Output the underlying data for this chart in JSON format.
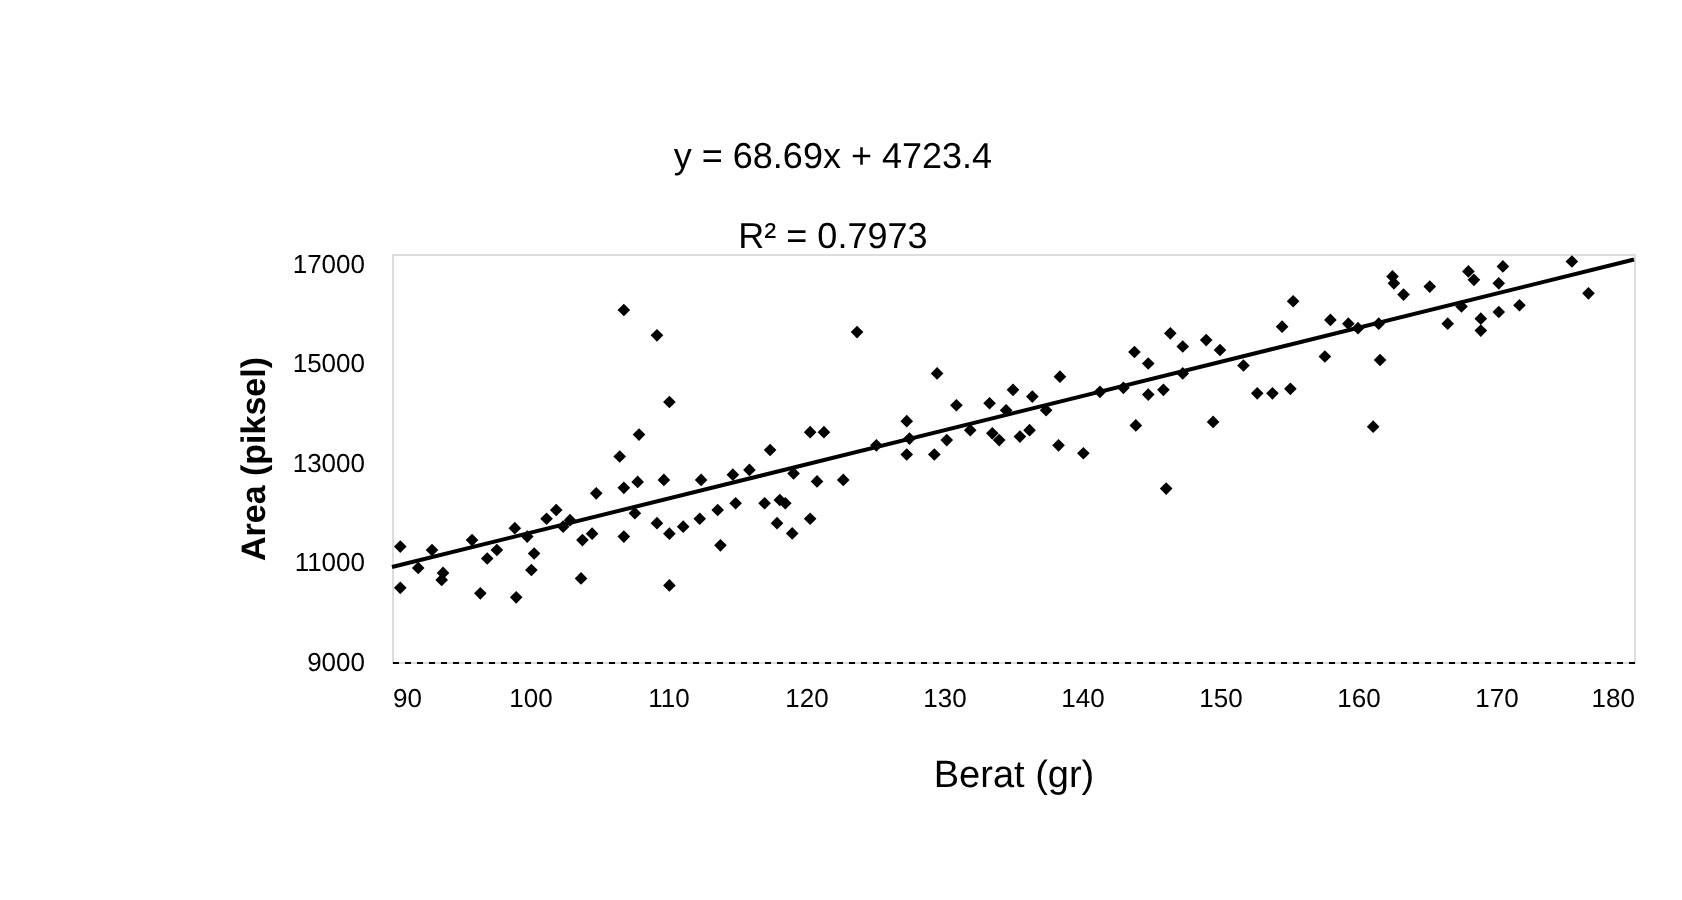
{
  "chart_data": {
    "type": "scatter",
    "xlabel": "Berat (gr)",
    "ylabel": "Area (piksel)",
    "annotations": [
      "y = 68.69x + 4723.4",
      "R² = 0.7973"
    ],
    "xlim": [
      90,
      180
    ],
    "xticks": [
      90,
      100,
      110,
      120,
      130,
      140,
      150,
      160,
      170,
      180
    ],
    "ylim": [
      9000,
      17200
    ],
    "yticks": [
      9000,
      11000,
      13000,
      15000,
      17000
    ],
    "grid": false,
    "marker": "diamond",
    "series": [
      {
        "color": "#000000",
        "x": [
          90.6,
          90.6,
          91.9,
          92.9,
          93.6,
          93.7,
          95.8,
          96.4,
          96.9,
          97.6,
          98.9,
          99,
          99.8,
          100.3,
          100.1,
          101.2,
          101.9,
          102.4,
          102.9,
          103.7,
          103.8,
          104.8,
          104.5,
          106.5,
          106.8,
          106.8,
          106.8,
          107.9,
          107.8,
          107.6,
          109.2,
          109.7,
          109.2,
          110.1,
          110.1,
          110.1,
          111.1,
          112.3,
          112.4,
          113.8,
          113.6,
          114.7,
          114.9,
          115.9,
          117.4,
          117.0,
          117.9,
          118.5,
          119.0,
          118.1,
          120.3,
          119.1,
          120.8,
          120.3,
          121.3,
          122.7,
          123.7,
          125.1,
          127.3,
          127.3,
          127.5,
          129.3,
          129.5,
          130.2,
          130.9,
          131.9,
          133.3,
          133.5,
          134.0,
          134.5,
          135.0,
          135.5,
          136.4,
          136.2,
          137.4,
          138.4,
          138.3,
          140.1,
          141.3,
          143.0,
          143.8,
          143.9,
          144.8,
          144.8,
          145.9,
          146.1,
          146.4,
          147.3,
          147.3,
          149.0,
          149.5,
          150.0,
          151.7,
          152.7,
          153.8,
          155.1,
          154.5,
          155.3,
          157.6,
          158.0,
          159.3,
          160.0,
          161.1,
          161.5,
          161.6,
          162.6,
          163.3,
          165.2,
          166.5,
          167.5,
          168.4,
          168.9,
          168.9,
          170.2,
          170.2,
          171.7,
          176.7,
          162.5,
          168.0,
          170.5,
          175.5
        ],
        "values": [
          11320,
          10490,
          10890,
          11250,
          10650,
          10790,
          11450,
          10380,
          11080,
          11250,
          11690,
          10300,
          11520,
          11180,
          10850,
          11880,
          12055,
          11720,
          11850,
          10680,
          11450,
          12390,
          11580,
          13130,
          16075,
          12500,
          11520,
          13570,
          12620,
          11990,
          15565,
          12660,
          11790,
          14225,
          10540,
          11580,
          11720,
          11880,
          12660,
          11345,
          12055,
          12765,
          12190,
          12860,
          13260,
          12190,
          11790,
          12190,
          11585,
          12255,
          11880,
          12790,
          12630,
          13620,
          13620,
          12660,
          15630,
          13355,
          13170,
          13840,
          13490,
          13170,
          14800,
          13460,
          14160,
          13660,
          14200,
          13595,
          13460,
          14060,
          14470,
          13530,
          14335,
          13660,
          14060,
          14735,
          13355,
          13195,
          14430,
          14510,
          15230,
          13755,
          15000,
          14375,
          14470,
          12485,
          15605,
          15340,
          14800,
          15470,
          13825,
          15270,
          14960,
          14400,
          14400,
          14490,
          15740,
          16250,
          15140,
          15875,
          15800,
          15710,
          13730,
          15800,
          15070,
          16610,
          16385,
          16545,
          15800,
          16145,
          16680,
          15900,
          15660,
          16035,
          16610,
          16170,
          16410,
          16750,
          16850,
          16950,
          17050
        ]
      },
      {
        "type": "line",
        "color": "#000000",
        "line_style": "solid",
        "marker": "none",
        "x": [
          90,
          180
        ],
        "values": [
          10910,
          17090
        ]
      }
    ]
  }
}
